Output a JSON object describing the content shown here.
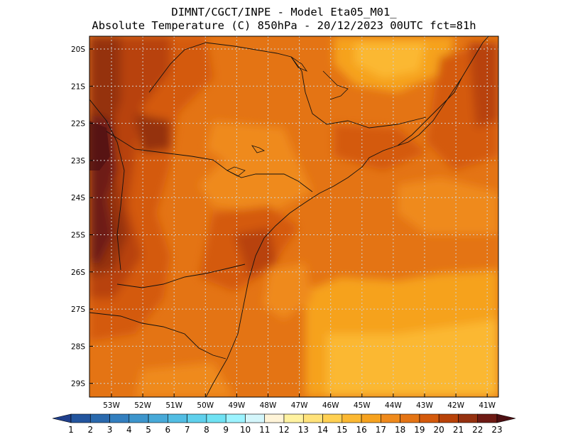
{
  "header": {
    "line1": "DIMNT/CGCT/INPE -  Model Eta05_M01_",
    "line2": "Absolute Temperature (C) 850hPa -  20/12/2023 00UTC fct=81h"
  },
  "map": {
    "lat_labels": [
      "20S",
      "21S",
      "22S",
      "23S",
      "24S",
      "25S",
      "26S",
      "27S",
      "28S",
      "29S"
    ],
    "lon_labels": [
      "53W",
      "52W",
      "51W",
      "50W",
      "49W",
      "48W",
      "47W",
      "46W",
      "45W",
      "44W",
      "43W",
      "42W",
      "41W"
    ],
    "extent": {
      "lon_min": -53.6,
      "lon_max": -40.6,
      "lat_min": -29.4,
      "lat_max": -19.8
    },
    "grid": "dotted",
    "field": "Absolute Temperature (C) 850hPa"
  },
  "colorbar": {
    "labels": [
      "1",
      "2",
      "3",
      "4",
      "5",
      "6",
      "7",
      "8",
      "9",
      "10",
      "11",
      "12",
      "13",
      "14",
      "15",
      "16",
      "17",
      "18",
      "19",
      "20",
      "21",
      "22",
      "23"
    ],
    "colors": [
      "#1f3f8c",
      "#23559e",
      "#2a69ad",
      "#337fbf",
      "#3d95cc",
      "#47a9d8",
      "#52bde3",
      "#5fd0ec",
      "#6fe2f3",
      "#9cf3ff",
      "#d4f6fb",
      "#fff4d8",
      "#fff2a0",
      "#ffe27a",
      "#ffd052",
      "#fbb832",
      "#f6a21f",
      "#ef8a1c",
      "#e47414",
      "#d45a0c",
      "#b84208",
      "#953110",
      "#6e1a14",
      "#4d0f12"
    ]
  }
}
